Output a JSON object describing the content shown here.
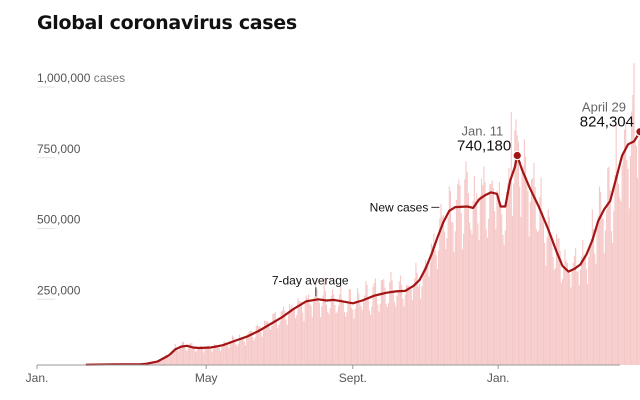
{
  "title": "Global coronavirus cases",
  "chart_data": {
    "type": "bar",
    "title": "Global coronavirus cases",
    "xlabel": "",
    "ylabel": "",
    "ylim": [
      0,
      1000000
    ],
    "y_ticks": [
      {
        "value": 1000000,
        "label": "1,000,000",
        "suffix": " cases"
      },
      {
        "value": 750000,
        "label": "750,000"
      },
      {
        "value": 500000,
        "label": "500,000"
      },
      {
        "value": 250000,
        "label": "250,000"
      }
    ],
    "x_ticks": [
      {
        "day": 0,
        "label": "Jan."
      },
      {
        "day": 121,
        "label": "May"
      },
      {
        "day": 244,
        "label": "Sept."
      },
      {
        "day": 366,
        "label": "Jan."
      }
    ],
    "x_range_days": [
      0,
      485
    ],
    "bar_color": "#f6c7c7",
    "line_color": "#a31515",
    "series": [
      {
        "name": "7-day average",
        "points": [
          [
            20,
            1000
          ],
          [
            45,
            2500
          ],
          [
            65,
            2000
          ],
          [
            70,
            4000
          ],
          [
            80,
            12000
          ],
          [
            90,
            35000
          ],
          [
            95,
            55000
          ],
          [
            100,
            65000
          ],
          [
            105,
            68000
          ],
          [
            110,
            62000
          ],
          [
            115,
            60000
          ],
          [
            125,
            62000
          ],
          [
            135,
            70000
          ],
          [
            145,
            85000
          ],
          [
            155,
            100000
          ],
          [
            165,
            120000
          ],
          [
            175,
            145000
          ],
          [
            185,
            170000
          ],
          [
            195,
            200000
          ],
          [
            205,
            225000
          ],
          [
            215,
            232000
          ],
          [
            222,
            228000
          ],
          [
            228,
            230000
          ],
          [
            235,
            225000
          ],
          [
            244,
            218000
          ],
          [
            252,
            228000
          ],
          [
            262,
            245000
          ],
          [
            272,
            255000
          ],
          [
            280,
            260000
          ],
          [
            288,
            262000
          ],
          [
            295,
            280000
          ],
          [
            300,
            300000
          ],
          [
            305,
            340000
          ],
          [
            310,
            390000
          ],
          [
            315,
            450000
          ],
          [
            320,
            505000
          ],
          [
            325,
            545000
          ],
          [
            330,
            558000
          ],
          [
            340,
            560000
          ],
          [
            345,
            555000
          ],
          [
            350,
            585000
          ],
          [
            355,
            600000
          ],
          [
            360,
            610000
          ],
          [
            365,
            605000
          ],
          [
            368,
            560000
          ],
          [
            372,
            560000
          ],
          [
            376,
            650000
          ],
          [
            380,
            700000
          ],
          [
            382,
            740180
          ],
          [
            386,
            690000
          ],
          [
            392,
            630000
          ],
          [
            400,
            560000
          ],
          [
            408,
            480000
          ],
          [
            415,
            400000
          ],
          [
            420,
            350000
          ],
          [
            425,
            330000
          ],
          [
            430,
            340000
          ],
          [
            435,
            355000
          ],
          [
            440,
            390000
          ],
          [
            445,
            440000
          ],
          [
            450,
            510000
          ],
          [
            455,
            550000
          ],
          [
            460,
            580000
          ],
          [
            465,
            660000
          ],
          [
            470,
            740000
          ],
          [
            475,
            780000
          ],
          [
            480,
            790000
          ],
          [
            485,
            824304
          ]
        ]
      }
    ],
    "annotations": [
      {
        "type": "label",
        "text": "7-day average",
        "day": 213,
        "value": 232000
      },
      {
        "type": "label",
        "text": "New cases",
        "day": 320,
        "value": 550000
      },
      {
        "type": "peak",
        "date": "Jan. 11",
        "value_label": "740,180",
        "day": 382,
        "value": 740180
      },
      {
        "type": "peak",
        "date": "April 29",
        "value_label": "824,304",
        "day": 485,
        "value": 824304
      }
    ]
  }
}
